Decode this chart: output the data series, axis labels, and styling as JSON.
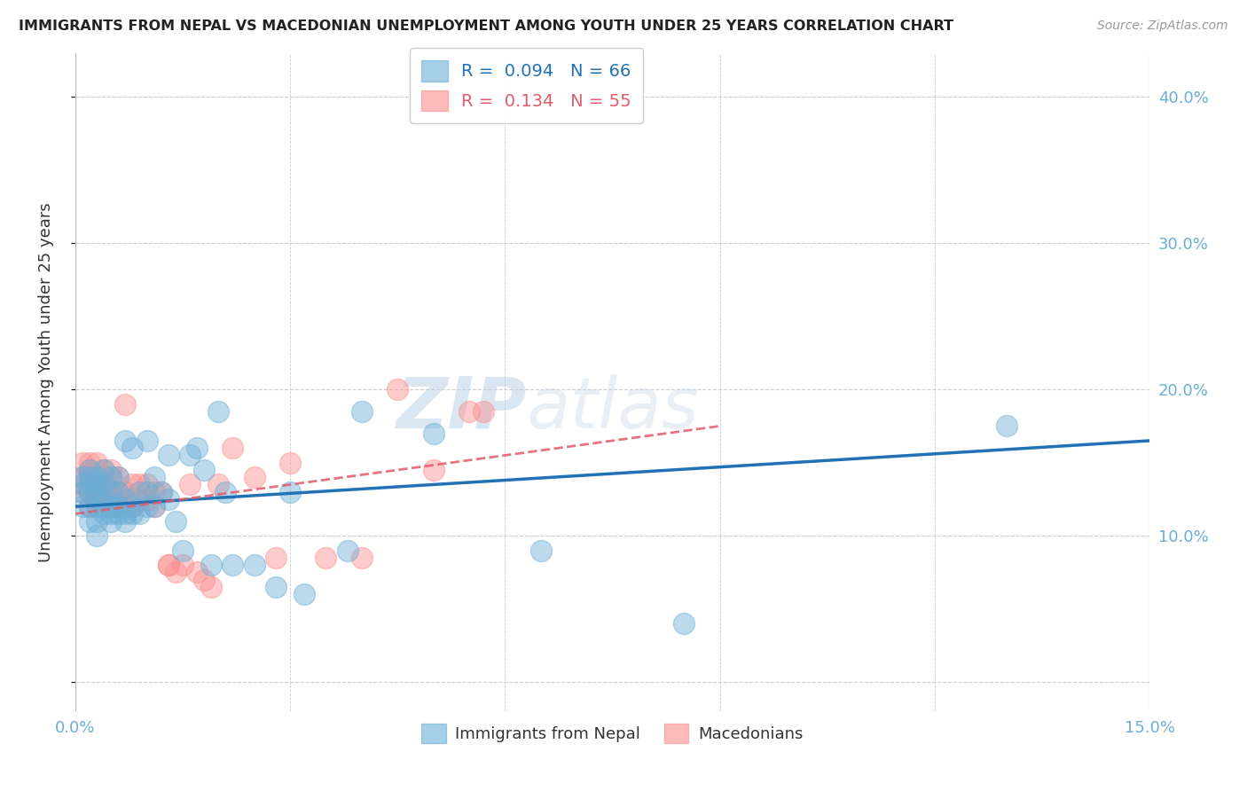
{
  "title": "IMMIGRANTS FROM NEPAL VS MACEDONIAN UNEMPLOYMENT AMONG YOUTH UNDER 25 YEARS CORRELATION CHART",
  "source": "Source: ZipAtlas.com",
  "ylabel": "Unemployment Among Youth under 25 years",
  "right_yticks": [
    0.0,
    0.1,
    0.2,
    0.3,
    0.4
  ],
  "right_yticklabels": [
    "",
    "10.0%",
    "20.0%",
    "30.0%",
    "40.0%"
  ],
  "xlim": [
    0.0,
    0.15
  ],
  "ylim": [
    -0.02,
    0.43
  ],
  "legend_nepal_R": "0.094",
  "legend_nepal_N": "66",
  "legend_mac_R": "0.134",
  "legend_mac_N": "55",
  "nepal_color": "#6baed6",
  "mac_color": "#fc8d8d",
  "nepal_line_color": "#2171b5",
  "mac_line_color": "#e05c6e",
  "title_color": "#222222",
  "axis_color": "#6baed6",
  "watermark_zip": "ZIP",
  "watermark_atlas": "atlas",
  "nepal_x": [
    0.001,
    0.001,
    0.001,
    0.001,
    0.002,
    0.002,
    0.002,
    0.002,
    0.002,
    0.002,
    0.003,
    0.003,
    0.003,
    0.003,
    0.003,
    0.003,
    0.004,
    0.004,
    0.004,
    0.004,
    0.004,
    0.005,
    0.005,
    0.005,
    0.005,
    0.005,
    0.006,
    0.006,
    0.006,
    0.006,
    0.007,
    0.007,
    0.007,
    0.007,
    0.008,
    0.008,
    0.008,
    0.009,
    0.009,
    0.01,
    0.01,
    0.01,
    0.011,
    0.011,
    0.012,
    0.013,
    0.013,
    0.014,
    0.015,
    0.016,
    0.017,
    0.018,
    0.019,
    0.02,
    0.021,
    0.022,
    0.025,
    0.028,
    0.03,
    0.032,
    0.038,
    0.04,
    0.05,
    0.065,
    0.085,
    0.13
  ],
  "nepal_y": [
    0.12,
    0.13,
    0.135,
    0.14,
    0.11,
    0.12,
    0.13,
    0.135,
    0.14,
    0.145,
    0.1,
    0.11,
    0.12,
    0.13,
    0.135,
    0.14,
    0.115,
    0.12,
    0.125,
    0.135,
    0.145,
    0.11,
    0.115,
    0.12,
    0.13,
    0.14,
    0.115,
    0.12,
    0.13,
    0.14,
    0.11,
    0.115,
    0.125,
    0.165,
    0.115,
    0.12,
    0.16,
    0.115,
    0.13,
    0.12,
    0.13,
    0.165,
    0.12,
    0.14,
    0.13,
    0.125,
    0.155,
    0.11,
    0.09,
    0.155,
    0.16,
    0.145,
    0.08,
    0.185,
    0.13,
    0.08,
    0.08,
    0.065,
    0.13,
    0.06,
    0.09,
    0.185,
    0.17,
    0.09,
    0.04,
    0.175
  ],
  "mac_x": [
    0.001,
    0.001,
    0.001,
    0.001,
    0.002,
    0.002,
    0.002,
    0.002,
    0.002,
    0.003,
    0.003,
    0.003,
    0.003,
    0.004,
    0.004,
    0.004,
    0.004,
    0.005,
    0.005,
    0.005,
    0.005,
    0.006,
    0.006,
    0.006,
    0.007,
    0.007,
    0.007,
    0.008,
    0.008,
    0.009,
    0.009,
    0.01,
    0.01,
    0.011,
    0.011,
    0.012,
    0.013,
    0.013,
    0.014,
    0.015,
    0.016,
    0.017,
    0.018,
    0.019,
    0.02,
    0.022,
    0.025,
    0.028,
    0.03,
    0.035,
    0.04,
    0.045,
    0.05,
    0.055,
    0.057
  ],
  "mac_y": [
    0.13,
    0.135,
    0.14,
    0.15,
    0.12,
    0.13,
    0.14,
    0.145,
    0.15,
    0.125,
    0.13,
    0.14,
    0.15,
    0.125,
    0.13,
    0.135,
    0.145,
    0.12,
    0.13,
    0.14,
    0.145,
    0.125,
    0.13,
    0.14,
    0.12,
    0.13,
    0.19,
    0.12,
    0.135,
    0.125,
    0.135,
    0.125,
    0.135,
    0.12,
    0.13,
    0.13,
    0.08,
    0.08,
    0.075,
    0.08,
    0.135,
    0.075,
    0.07,
    0.065,
    0.135,
    0.16,
    0.14,
    0.085,
    0.15,
    0.085,
    0.085,
    0.2,
    0.145,
    0.185,
    0.185
  ],
  "nepal_line_x": [
    0.0,
    0.15
  ],
  "nepal_line_y": [
    0.12,
    0.165
  ],
  "mac_line_x": [
    0.0,
    0.09
  ],
  "mac_line_y": [
    0.115,
    0.175
  ]
}
